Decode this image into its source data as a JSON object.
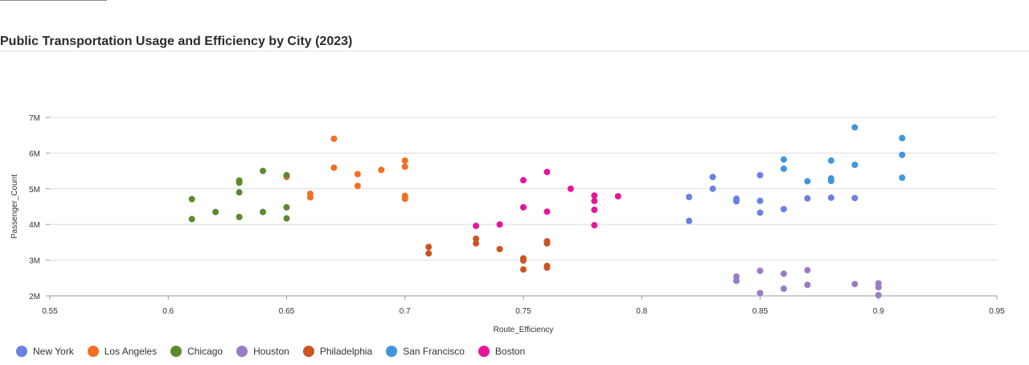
{
  "chart_data": {
    "type": "scatter",
    "title": "Public Transportation Usage and Efficiency by City (2023)",
    "xlabel": "Route_Efficiency",
    "ylabel": "Passenger_Count",
    "xlim": [
      0.55,
      0.95
    ],
    "ylim": [
      2000000,
      7000000
    ],
    "x_ticks": [
      0.55,
      0.6,
      0.65,
      0.7,
      0.75,
      0.8,
      0.85,
      0.9,
      0.95
    ],
    "x_tick_labels": [
      "0.55",
      "0.6",
      "0.65",
      "0.7",
      "0.75",
      "0.8",
      "0.85",
      "0.9",
      "0.95"
    ],
    "y_ticks": [
      2000000,
      3000000,
      4000000,
      5000000,
      6000000,
      7000000
    ],
    "y_tick_labels": [
      "2M",
      "3M",
      "4M",
      "5M",
      "6M",
      "7M"
    ],
    "grid": "horizontal",
    "legend_position": "bottom-left",
    "series": [
      {
        "name": "New York",
        "color": "#6a80e3",
        "points": [
          [
            0.82,
            4.77
          ],
          [
            0.82,
            4.1
          ],
          [
            0.83,
            5.33
          ],
          [
            0.83,
            5.0
          ],
          [
            0.84,
            4.72
          ],
          [
            0.84,
            4.65
          ],
          [
            0.85,
            5.38
          ],
          [
            0.85,
            4.66
          ],
          [
            0.85,
            4.33
          ],
          [
            0.86,
            4.43
          ],
          [
            0.87,
            4.73
          ],
          [
            0.88,
            4.75
          ],
          [
            0.89,
            4.74
          ]
        ]
      },
      {
        "name": "Los Angeles",
        "color": "#f2701f",
        "points": [
          [
            0.65,
            5.33
          ],
          [
            0.66,
            4.86
          ],
          [
            0.66,
            4.76
          ],
          [
            0.67,
            6.4
          ],
          [
            0.67,
            5.59
          ],
          [
            0.68,
            5.41
          ],
          [
            0.68,
            5.08
          ],
          [
            0.69,
            5.53
          ],
          [
            0.7,
            5.79
          ],
          [
            0.7,
            5.62
          ],
          [
            0.7,
            4.8
          ],
          [
            0.7,
            4.72
          ]
        ]
      },
      {
        "name": "Chicago",
        "color": "#5a8a2c",
        "points": [
          [
            0.61,
            4.71
          ],
          [
            0.61,
            4.15
          ],
          [
            0.62,
            4.35
          ],
          [
            0.63,
            5.23
          ],
          [
            0.63,
            5.17
          ],
          [
            0.63,
            4.9
          ],
          [
            0.63,
            4.21
          ],
          [
            0.64,
            5.5
          ],
          [
            0.64,
            4.35
          ],
          [
            0.65,
            5.38
          ],
          [
            0.65,
            4.48
          ],
          [
            0.65,
            4.17
          ]
        ]
      },
      {
        "name": "Houston",
        "color": "#9a7bc6",
        "points": [
          [
            0.84,
            2.54
          ],
          [
            0.84,
            2.42
          ],
          [
            0.85,
            2.7
          ],
          [
            0.85,
            2.08
          ],
          [
            0.86,
            2.62
          ],
          [
            0.86,
            2.2
          ],
          [
            0.87,
            2.72
          ],
          [
            0.87,
            2.31
          ],
          [
            0.89,
            2.33
          ],
          [
            0.9,
            2.35
          ],
          [
            0.9,
            2.24
          ],
          [
            0.9,
            2.02
          ]
        ]
      },
      {
        "name": "Philadelphia",
        "color": "#cb5424",
        "points": [
          [
            0.71,
            3.37
          ],
          [
            0.71,
            3.19
          ],
          [
            0.73,
            3.6
          ],
          [
            0.73,
            3.47
          ],
          [
            0.74,
            3.31
          ],
          [
            0.75,
            3.05
          ],
          [
            0.75,
            2.99
          ],
          [
            0.75,
            2.74
          ],
          [
            0.76,
            3.53
          ],
          [
            0.76,
            3.47
          ],
          [
            0.76,
            2.84
          ],
          [
            0.76,
            2.79
          ]
        ]
      },
      {
        "name": "San Francisco",
        "color": "#3f96dd",
        "points": [
          [
            0.86,
            5.82
          ],
          [
            0.86,
            5.56
          ],
          [
            0.87,
            5.21
          ],
          [
            0.88,
            5.79
          ],
          [
            0.88,
            5.29
          ],
          [
            0.88,
            5.22
          ],
          [
            0.89,
            6.72
          ],
          [
            0.89,
            5.67
          ],
          [
            0.91,
            6.42
          ],
          [
            0.91,
            5.95
          ],
          [
            0.91,
            5.31
          ]
        ]
      },
      {
        "name": "Boston",
        "color": "#e4169a",
        "points": [
          [
            0.73,
            3.96
          ],
          [
            0.74,
            4.0
          ],
          [
            0.75,
            5.24
          ],
          [
            0.75,
            4.48
          ],
          [
            0.76,
            5.47
          ],
          [
            0.76,
            4.36
          ],
          [
            0.77,
            5.0
          ],
          [
            0.78,
            4.81
          ],
          [
            0.78,
            4.66
          ],
          [
            0.78,
            4.41
          ],
          [
            0.78,
            3.98
          ],
          [
            0.79,
            4.79
          ]
        ]
      }
    ]
  }
}
